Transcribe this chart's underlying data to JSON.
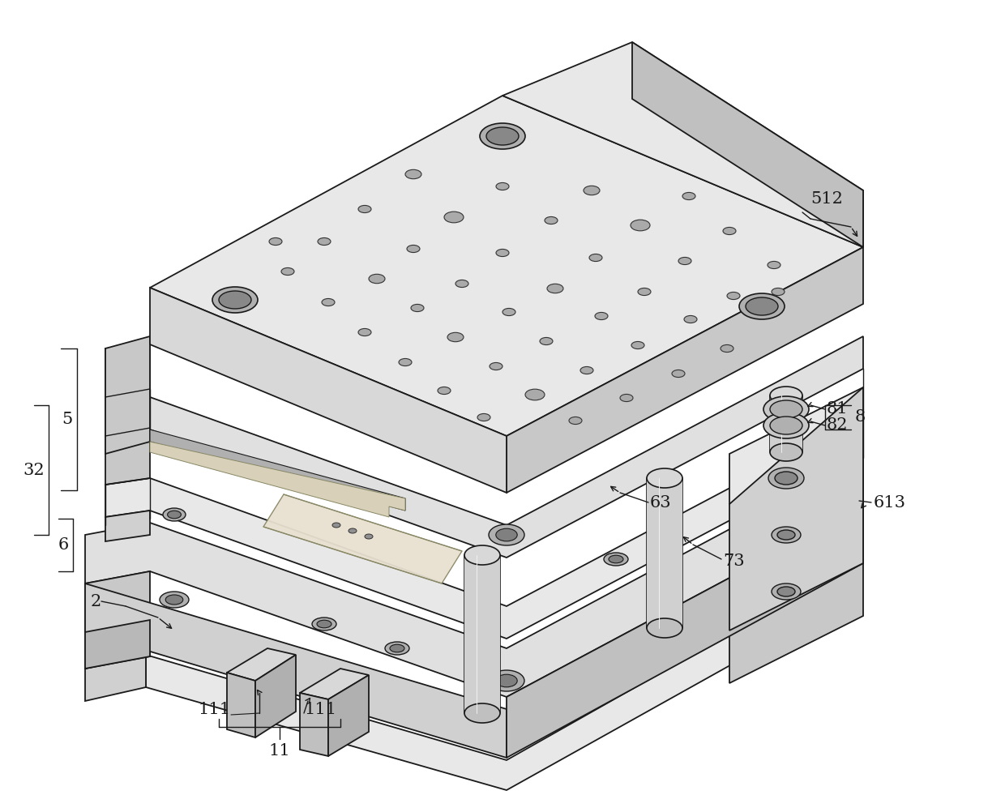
{
  "bg": "#ffffff",
  "lc": "#1a1a1a",
  "lw": 1.3,
  "fig_w": 12.4,
  "fig_h": 9.81,
  "face_light": "#f0f0f0",
  "face_mid": "#e0e0e0",
  "face_dark": "#d0d0d0",
  "face_darker": "#c0c0c0",
  "face_slot": "#b8b8b8",
  "ann_fs": 15
}
